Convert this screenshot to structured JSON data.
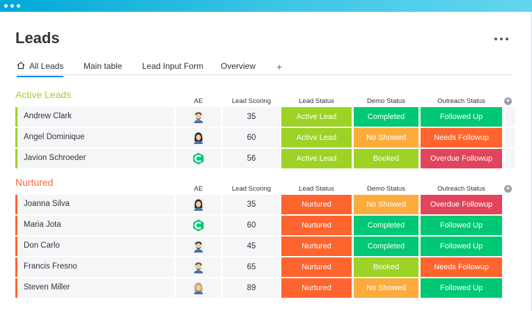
{
  "board": {
    "title": "Leads"
  },
  "tabs": [
    {
      "label": "All Leads"
    },
    {
      "label": "Main table"
    },
    {
      "label": "Lead Input Form"
    },
    {
      "label": "Overview"
    }
  ],
  "tab_add": "+",
  "columns": {
    "ae": "AE",
    "score": "Lead Scoring",
    "lead_status": "Lead Status",
    "demo_status": "Demo Status",
    "outreach_status": "Outreach Status"
  },
  "colors": {
    "active_lead": "#9cd326",
    "nurtured": "#ff642e",
    "completed": "#00c875",
    "followed_up": "#00c875",
    "no_showed": "#fdab3d",
    "booked": "#9cd326",
    "needs_followup": "#ff642e",
    "overdue_followup": "#e2445c",
    "group_active": "#9cd326",
    "group_nurtured": "#ff642e"
  },
  "groups": [
    {
      "title": "Active Leads",
      "rows": [
        {
          "name": "Andrew Clark",
          "avatar": "man-beard-avatar",
          "score": "35",
          "lead_status": "Active Lead",
          "demo_status": "Completed",
          "outreach_status": "Followed Up"
        },
        {
          "name": "Angel Dominique",
          "avatar": "woman-dark-hair-avatar",
          "score": "60",
          "lead_status": "Active Lead",
          "demo_status": "No Showed",
          "outreach_status": "Needs Followup"
        },
        {
          "name": "Javion Schroeder",
          "avatar": "brand-logo-avatar",
          "score": "56",
          "lead_status": "Active Lead",
          "demo_status": "Booked",
          "outreach_status": "Overdue Followup"
        }
      ]
    },
    {
      "title": "Nurtured",
      "rows": [
        {
          "name": "Joanna Silva",
          "avatar": "woman-curly-hair-avatar",
          "score": "35",
          "lead_status": "Nurtured",
          "demo_status": "No Showed",
          "outreach_status": "Overdue Followup"
        },
        {
          "name": "Maria Jota",
          "avatar": "brand-logo-avatar",
          "score": "60",
          "lead_status": "Nurtured",
          "demo_status": "Completed",
          "outreach_status": "Followed Up"
        },
        {
          "name": "Don Carlo",
          "avatar": "man-cap-avatar",
          "score": "45",
          "lead_status": "Nurtured",
          "demo_status": "Completed",
          "outreach_status": "Followed Up"
        },
        {
          "name": "Francis Fresno",
          "avatar": "man-beard-avatar",
          "score": "65",
          "lead_status": "Nurtured",
          "demo_status": "Booked",
          "outreach_status": "Needs Followup"
        },
        {
          "name": "Steven Miller",
          "avatar": "woman-blonde-avatar",
          "score": "89",
          "lead_status": "Nurtured",
          "demo_status": "No Showed",
          "outreach_status": "Followed Up"
        }
      ]
    }
  ]
}
